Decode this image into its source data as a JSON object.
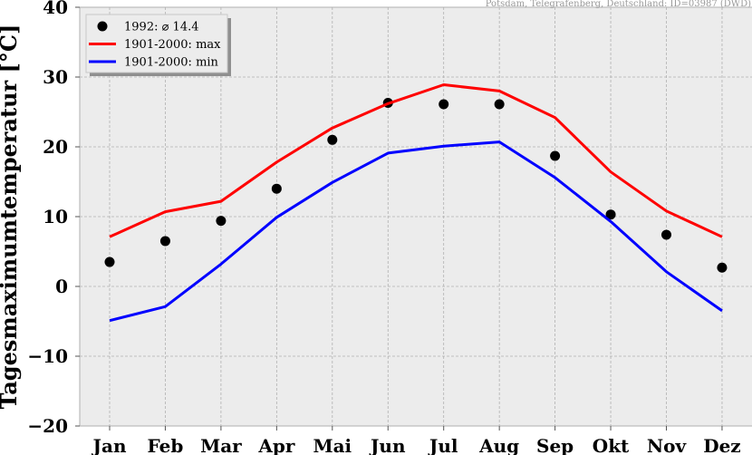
{
  "chart_data": {
    "type": "line",
    "source_note": "Potsdam, Telegrafenberg, Deutschland: ID=03987 (DWD)",
    "ylabel": "Tagesmaximumtemperatur [°C]",
    "xlabel": "",
    "ylim": [
      -20,
      40
    ],
    "yticks": [
      -20,
      -10,
      0,
      10,
      20,
      30,
      40
    ],
    "yticklabels": [
      "−20",
      "−10",
      "0",
      "10",
      "20",
      "30",
      "40"
    ],
    "categories": [
      "Jan",
      "Feb",
      "Mar",
      "Apr",
      "Mai",
      "Jun",
      "Jul",
      "Aug",
      "Sep",
      "Okt",
      "Nov",
      "Dez"
    ],
    "grid": true,
    "legend_position": "top-left",
    "series": [
      {
        "name": "1992: ⌀ 14.4",
        "kind": "scatter",
        "color": "#000000",
        "values": [
          3.5,
          6.5,
          9.4,
          14.0,
          21.0,
          26.3,
          26.1,
          26.1,
          18.7,
          10.3,
          7.4,
          2.7
        ]
      },
      {
        "name": "1901-2000: max",
        "kind": "line",
        "color": "#ff0000",
        "values": [
          7.1,
          10.7,
          12.2,
          17.8,
          22.7,
          26.2,
          28.9,
          28.0,
          24.2,
          16.4,
          10.8,
          7.1
        ]
      },
      {
        "name": "1901-2000: min",
        "kind": "line",
        "color": "#0000ff",
        "values": [
          -4.9,
          -2.9,
          3.2,
          9.9,
          14.9,
          19.1,
          20.1,
          20.7,
          15.6,
          9.3,
          2.1,
          -3.5
        ]
      }
    ]
  }
}
